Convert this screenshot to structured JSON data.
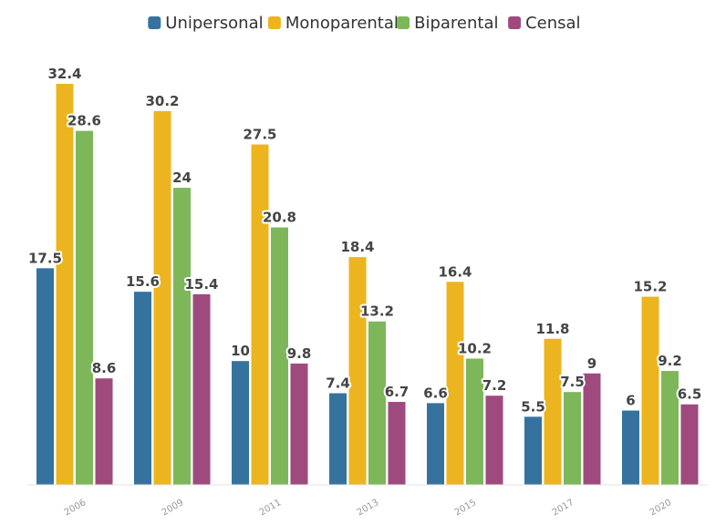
{
  "chart_data": {
    "type": "bar",
    "categories": [
      "2006",
      "2009",
      "2011",
      "2013",
      "2015",
      "2017",
      "2020"
    ],
    "series": [
      {
        "name": "Unipersonal",
        "color": "#35739e",
        "values": [
          17.5,
          15.6,
          10,
          7.4,
          6.6,
          5.5,
          6
        ]
      },
      {
        "name": "Monoparental",
        "color": "#ecb41f",
        "values": [
          32.4,
          30.2,
          27.5,
          18.4,
          16.4,
          11.8,
          15.2
        ]
      },
      {
        "name": "Biparental",
        "color": "#7db75a",
        "values": [
          28.6,
          24,
          20.8,
          13.2,
          10.2,
          7.5,
          9.2
        ]
      },
      {
        "name": "Censal",
        "color": "#9e4a7e",
        "values": [
          8.6,
          15.4,
          9.8,
          6.7,
          7.2,
          9,
          6.5
        ]
      }
    ],
    "title": "",
    "xlabel": "",
    "ylabel": "",
    "ylim": [
      0,
      34.5
    ],
    "grid": false,
    "legend_position": "top-center",
    "data_labels": true
  }
}
